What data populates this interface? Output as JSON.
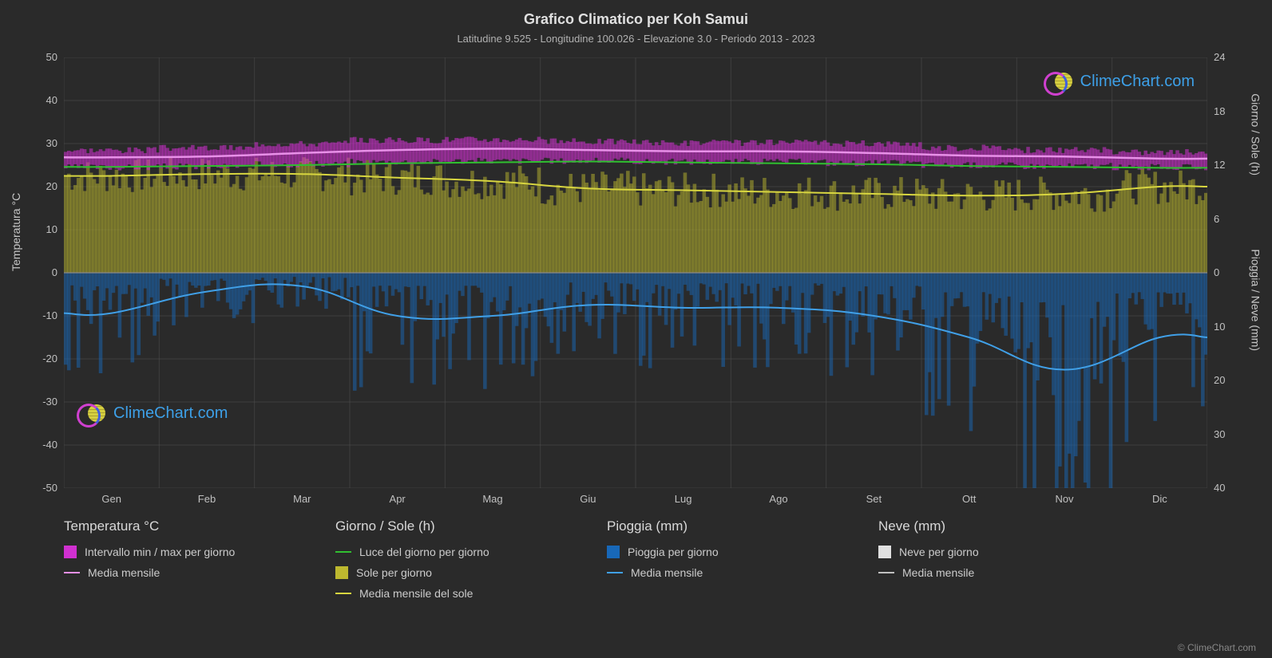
{
  "title": "Grafico Climatico per Koh Samui",
  "subtitle": "Latitudine 9.525 - Longitudine 100.026 - Elevazione 3.0 - Periodo 2013 - 2023",
  "watermark_text": "ClimeChart.com",
  "copyright": "© ClimeChart.com",
  "axes": {
    "left_label": "Temperatura °C",
    "right_top_label": "Giorno / Sole (h)",
    "right_bot_label": "Pioggia / Neve (mm)",
    "left_ticks": [
      50,
      40,
      30,
      20,
      10,
      0,
      -10,
      -20,
      -30,
      -40,
      -50
    ],
    "left_min": -50,
    "left_max": 50,
    "right_top_ticks": [
      24,
      18,
      12,
      6,
      0
    ],
    "right_top_min": 0,
    "right_top_max": 24,
    "right_top_zero_at_temp": 0,
    "right_top_top_at_temp": 50,
    "right_bot_ticks": [
      0,
      10,
      20,
      30,
      40
    ],
    "right_bot_min": 0,
    "right_bot_max": 40,
    "right_bot_zero_at_temp": 0,
    "right_bot_bottom_at_temp": -50,
    "months": [
      "Gen",
      "Feb",
      "Mar",
      "Apr",
      "Mag",
      "Giu",
      "Lug",
      "Ago",
      "Set",
      "Ott",
      "Nov",
      "Dic"
    ]
  },
  "chart": {
    "background": "#2a2a2a",
    "grid_color": "#5a5a5a",
    "grid_opacity": 0.4,
    "zero_line_color": "#888888",
    "temp_range_color": "#d030d0",
    "temp_range_opacity": 0.55,
    "temp_mean_line_color": "#e890e8",
    "temp_mean_line_width": 2.5,
    "daylight_line_color": "#30c030",
    "daylight_line_width": 2,
    "sun_fill_color": "#bdb82f",
    "sun_fill_opacity": 0.55,
    "sun_mean_line_color": "#d8d640",
    "sun_mean_line_width": 2,
    "rain_fill_color": "#1868b8",
    "rain_fill_opacity": 0.5,
    "rain_mean_line_color": "#40a0e8",
    "rain_mean_line_width": 2,
    "snow_fill_color": "#e0e0e0",
    "snow_mean_line_color": "#c0c0c0",
    "series": {
      "temp_min": [
        24.5,
        24.7,
        25.2,
        25.8,
        26.0,
        26.0,
        25.8,
        25.8,
        25.5,
        25.0,
        24.8,
        24.5
      ],
      "temp_max": [
        28.5,
        29.0,
        30.0,
        30.8,
        31.0,
        30.5,
        30.2,
        30.2,
        30.0,
        29.0,
        28.5,
        28.0
      ],
      "temp_mean": [
        26.8,
        27.0,
        27.8,
        28.5,
        28.8,
        28.5,
        28.2,
        28.2,
        27.8,
        27.2,
        27.0,
        26.5
      ],
      "daylight_h": [
        11.8,
        11.9,
        12.0,
        12.2,
        12.3,
        12.4,
        12.3,
        12.2,
        12.1,
        11.9,
        11.8,
        11.7
      ],
      "sun_h_mean": [
        10.8,
        11.0,
        11.0,
        10.6,
        10.2,
        9.4,
        9.2,
        9.0,
        8.8,
        8.6,
        8.8,
        9.6
      ],
      "rain_mm_mean": [
        7.5,
        3.5,
        2.5,
        8.0,
        8.0,
        6.0,
        6.5,
        6.5,
        8.0,
        12.0,
        18.0,
        12.0
      ]
    }
  },
  "legend": {
    "col1_title": "Temperatura °C",
    "col1_item1": "Intervallo min / max per giorno",
    "col1_item2": "Media mensile",
    "col2_title": "Giorno / Sole (h)",
    "col2_item1": "Luce del giorno per giorno",
    "col2_item2": "Sole per giorno",
    "col2_item3": "Media mensile del sole",
    "col3_title": "Pioggia (mm)",
    "col3_item1": "Pioggia per giorno",
    "col3_item2": "Media mensile",
    "col4_title": "Neve (mm)",
    "col4_item1": "Neve per giorno",
    "col4_item2": "Media mensile"
  }
}
